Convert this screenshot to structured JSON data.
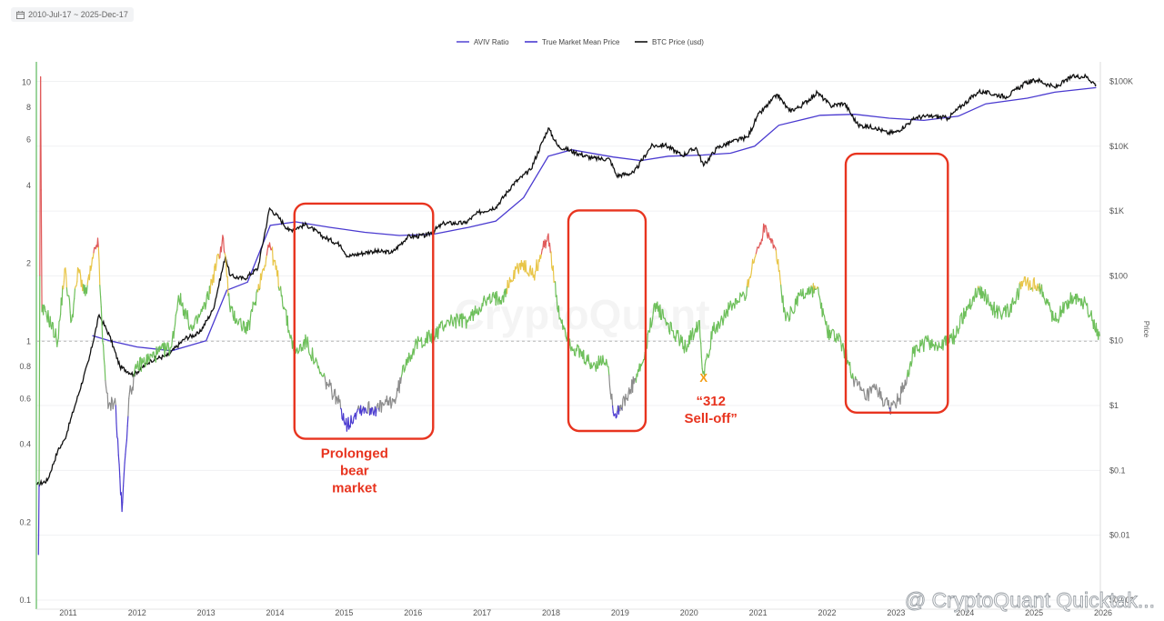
{
  "date_range": "2010-Jul-17 ~ 2025-Dec-17",
  "watermark": "CryptoQuant",
  "footer_watermark": "@ CryptoQuant Quicktak...",
  "legend": [
    {
      "label": "AVIV Ratio",
      "color": "#5b4fd6"
    },
    {
      "label": "True Market Mean Price",
      "color": "#4a3ad0"
    },
    {
      "label": "BTC Price (usd)",
      "color": "#111111"
    }
  ],
  "left_axis_ticks": [
    "10",
    "8",
    "6",
    "4",
    "2",
    "1",
    "0.8",
    "0.6",
    "0.4",
    "0.2",
    "0.1"
  ],
  "right_axis_ticks": [
    "$100K",
    "$10K",
    "$1K",
    "$100",
    "$10",
    "$1",
    "$0.1",
    "$0.01",
    "$0.001"
  ],
  "right_axis_title": "Price",
  "x_axis_ticks": [
    "2011",
    "2012",
    "2013",
    "2014",
    "2015",
    "2016",
    "2017",
    "2018",
    "2019",
    "2020",
    "2021",
    "2022",
    "2023",
    "2024",
    "2025",
    "2026"
  ],
  "annotations": {
    "bear_label": [
      "Prolonged",
      "bear",
      "market"
    ],
    "selloff_label": [
      "“312",
      "Sell-off”"
    ],
    "selloff_marker": "X"
  },
  "colors": {
    "aviv_green": "#6dbf5a",
    "aviv_yellow": "#e8c547",
    "aviv_red": "#e05a5a",
    "aviv_gray": "#8c8c8c",
    "aviv_blue": "#4a3ad0",
    "annotation_red": "#e8341f"
  },
  "chart_data": {
    "type": "line",
    "x_range": [
      2010.54,
      2025.96
    ],
    "y_left": {
      "scale": "log",
      "range": [
        0.1,
        12
      ],
      "reference_line": 1
    },
    "y_right": {
      "scale": "log",
      "range": [
        0.001,
        200000
      ]
    },
    "series": [
      {
        "name": "BTC Price (usd)",
        "axis": "right",
        "points": [
          [
            2010.55,
            0.06
          ],
          [
            2010.7,
            0.07
          ],
          [
            2010.85,
            0.2
          ],
          [
            2010.95,
            0.3
          ],
          [
            2011.1,
            1
          ],
          [
            2011.3,
            5
          ],
          [
            2011.45,
            25
          ],
          [
            2011.6,
            12
          ],
          [
            2011.75,
            4
          ],
          [
            2011.95,
            3
          ],
          [
            2012.2,
            5
          ],
          [
            2012.45,
            6
          ],
          [
            2012.7,
            11
          ],
          [
            2012.9,
            13
          ],
          [
            2013.1,
            30
          ],
          [
            2013.28,
            200
          ],
          [
            2013.35,
            100
          ],
          [
            2013.55,
            90
          ],
          [
            2013.75,
            130
          ],
          [
            2013.92,
            1100
          ],
          [
            2014.05,
            800
          ],
          [
            2014.2,
            500
          ],
          [
            2014.45,
            620
          ],
          [
            2014.7,
            400
          ],
          [
            2014.95,
            300
          ],
          [
            2015.05,
            200
          ],
          [
            2015.4,
            240
          ],
          [
            2015.7,
            230
          ],
          [
            2015.92,
            400
          ],
          [
            2016.2,
            420
          ],
          [
            2016.45,
            650
          ],
          [
            2016.75,
            650
          ],
          [
            2016.95,
            950
          ],
          [
            2017.2,
            1150
          ],
          [
            2017.45,
            2600
          ],
          [
            2017.7,
            4300
          ],
          [
            2017.96,
            19000
          ],
          [
            2018.1,
            10000
          ],
          [
            2018.35,
            8000
          ],
          [
            2018.6,
            6500
          ],
          [
            2018.85,
            6300
          ],
          [
            2018.95,
            3500
          ],
          [
            2019.2,
            3900
          ],
          [
            2019.45,
            10000
          ],
          [
            2019.65,
            10500
          ],
          [
            2019.9,
            7200
          ],
          [
            2020.1,
            9500
          ],
          [
            2020.21,
            5000
          ],
          [
            2020.4,
            9300
          ],
          [
            2020.6,
            11500
          ],
          [
            2020.85,
            13800
          ],
          [
            2020.99,
            29000
          ],
          [
            2021.28,
            63000
          ],
          [
            2021.45,
            35000
          ],
          [
            2021.6,
            40000
          ],
          [
            2021.86,
            67000
          ],
          [
            2022.05,
            42000
          ],
          [
            2022.25,
            46000
          ],
          [
            2022.45,
            21000
          ],
          [
            2022.7,
            19500
          ],
          [
            2022.87,
            16000
          ],
          [
            2023.0,
            16500
          ],
          [
            2023.3,
            28000
          ],
          [
            2023.55,
            29000
          ],
          [
            2023.75,
            27000
          ],
          [
            2023.95,
            42000
          ],
          [
            2024.2,
            70000
          ],
          [
            2024.6,
            58000
          ],
          [
            2024.88,
            95000
          ],
          [
            2025.05,
            105000
          ],
          [
            2025.3,
            80000
          ],
          [
            2025.55,
            118000
          ],
          [
            2025.75,
            120000
          ],
          [
            2025.9,
            88000
          ]
        ]
      },
      {
        "name": "True Market Mean Price",
        "axis": "right",
        "points": [
          [
            2011.35,
            12
          ],
          [
            2011.6,
            10
          ],
          [
            2012.0,
            8
          ],
          [
            2012.5,
            7
          ],
          [
            2013.0,
            10
          ],
          [
            2013.3,
            60
          ],
          [
            2013.6,
            80
          ],
          [
            2013.93,
            600
          ],
          [
            2014.3,
            680
          ],
          [
            2014.8,
            560
          ],
          [
            2015.3,
            470
          ],
          [
            2015.8,
            420
          ],
          [
            2016.3,
            440
          ],
          [
            2016.8,
            560
          ],
          [
            2017.2,
            700
          ],
          [
            2017.6,
            1600
          ],
          [
            2017.96,
            7000
          ],
          [
            2018.3,
            8800
          ],
          [
            2018.9,
            6800
          ],
          [
            2019.3,
            6000
          ],
          [
            2019.7,
            7000
          ],
          [
            2020.2,
            7300
          ],
          [
            2020.6,
            7800
          ],
          [
            2020.95,
            10000
          ],
          [
            2021.3,
            21000
          ],
          [
            2021.9,
            30000
          ],
          [
            2022.4,
            31000
          ],
          [
            2022.9,
            27000
          ],
          [
            2023.4,
            25000
          ],
          [
            2023.9,
            29000
          ],
          [
            2024.3,
            45000
          ],
          [
            2024.9,
            55000
          ],
          [
            2025.3,
            68000
          ],
          [
            2025.9,
            80000
          ]
        ]
      },
      {
        "name": "AVIV Ratio",
        "axis": "left",
        "points": [
          [
            2010.57,
            0.15
          ],
          [
            2010.58,
            0.28
          ],
          [
            2010.6,
            10.5
          ],
          [
            2010.62,
            1.3
          ],
          [
            2010.68,
            1.3
          ],
          [
            2010.85,
            1.0
          ],
          [
            2010.95,
            1.9
          ],
          [
            2011.05,
            1.2
          ],
          [
            2011.15,
            1.9
          ],
          [
            2011.25,
            1.5
          ],
          [
            2011.43,
            2.5
          ],
          [
            2011.5,
            1.0
          ],
          [
            2011.58,
            0.55
          ],
          [
            2011.68,
            0.6
          ],
          [
            2011.78,
            0.22
          ],
          [
            2011.88,
            0.6
          ],
          [
            2012.0,
            0.8
          ],
          [
            2012.3,
            0.9
          ],
          [
            2012.5,
            0.95
          ],
          [
            2012.6,
            1.5
          ],
          [
            2012.8,
            1.1
          ],
          [
            2013.0,
            1.4
          ],
          [
            2013.25,
            2.5
          ],
          [
            2013.35,
            1.3
          ],
          [
            2013.6,
            1.1
          ],
          [
            2013.92,
            2.4
          ],
          [
            2014.1,
            1.5
          ],
          [
            2014.2,
            1.1
          ],
          [
            2014.3,
            0.9
          ],
          [
            2014.45,
            1.0
          ],
          [
            2014.65,
            0.75
          ],
          [
            2014.9,
            0.6
          ],
          [
            2015.05,
            0.47
          ],
          [
            2015.2,
            0.55
          ],
          [
            2015.5,
            0.55
          ],
          [
            2015.75,
            0.6
          ],
          [
            2015.9,
            0.85
          ],
          [
            2016.1,
            1.0
          ],
          [
            2016.3,
            1.05
          ],
          [
            2016.5,
            1.2
          ],
          [
            2016.8,
            1.2
          ],
          [
            2017.0,
            1.4
          ],
          [
            2017.3,
            1.5
          ],
          [
            2017.55,
            2.0
          ],
          [
            2017.75,
            1.8
          ],
          [
            2017.96,
            2.6
          ],
          [
            2018.1,
            1.3
          ],
          [
            2018.3,
            0.95
          ],
          [
            2018.6,
            0.8
          ],
          [
            2018.8,
            0.85
          ],
          [
            2018.92,
            0.52
          ],
          [
            2019.1,
            0.6
          ],
          [
            2019.35,
            0.85
          ],
          [
            2019.5,
            1.4
          ],
          [
            2019.75,
            1.1
          ],
          [
            2019.95,
            0.95
          ],
          [
            2020.15,
            1.2
          ],
          [
            2020.2,
            0.75
          ],
          [
            2020.35,
            1.1
          ],
          [
            2020.55,
            1.3
          ],
          [
            2020.8,
            1.5
          ],
          [
            2021.0,
            2.3
          ],
          [
            2021.1,
            2.8
          ],
          [
            2021.25,
            2.3
          ],
          [
            2021.4,
            1.2
          ],
          [
            2021.6,
            1.5
          ],
          [
            2021.85,
            1.6
          ],
          [
            2022.0,
            1.1
          ],
          [
            2022.2,
            1.0
          ],
          [
            2022.4,
            0.7
          ],
          [
            2022.55,
            0.6
          ],
          [
            2022.7,
            0.65
          ],
          [
            2022.9,
            0.55
          ],
          [
            2023.05,
            0.6
          ],
          [
            2023.25,
            0.9
          ],
          [
            2023.45,
            1.0
          ],
          [
            2023.65,
            0.95
          ],
          [
            2023.85,
            1.05
          ],
          [
            2024.0,
            1.3
          ],
          [
            2024.2,
            1.6
          ],
          [
            2024.45,
            1.3
          ],
          [
            2024.65,
            1.3
          ],
          [
            2024.85,
            1.7
          ],
          [
            2025.1,
            1.6
          ],
          [
            2025.3,
            1.2
          ],
          [
            2025.55,
            1.5
          ],
          [
            2025.75,
            1.4
          ],
          [
            2025.95,
            1.05
          ]
        ]
      }
    ]
  }
}
